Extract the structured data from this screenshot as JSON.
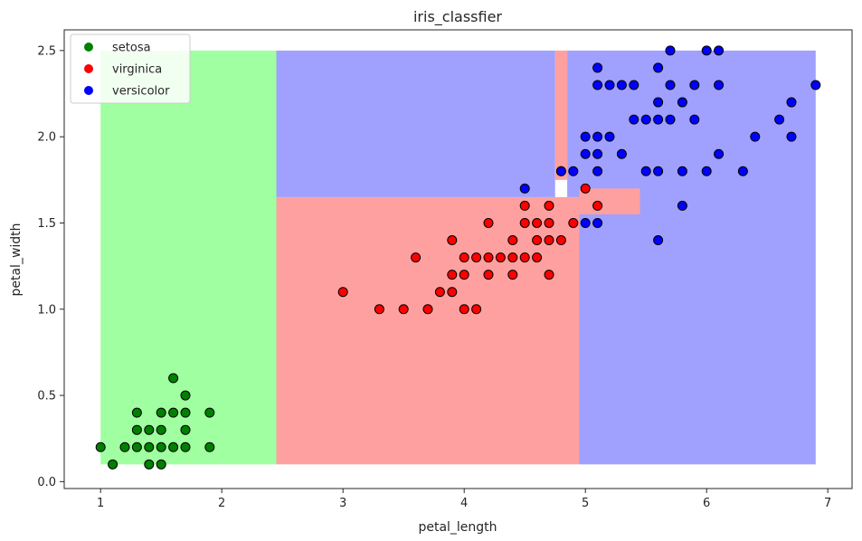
{
  "chart_data": {
    "type": "scatter",
    "title": "iris_classfier",
    "xlabel": "petal_length",
    "ylabel": "petal_width",
    "xlim": [
      0.7,
      7.2
    ],
    "ylim": [
      -0.04,
      2.62
    ],
    "xticks": [
      "1",
      "2",
      "3",
      "4",
      "5",
      "6",
      "7"
    ],
    "yticks": [
      "0.0",
      "0.5",
      "1.0",
      "1.5",
      "2.0",
      "2.5"
    ],
    "grid": false,
    "legend_position": "top-left",
    "regions": [
      {
        "label": "setosa",
        "color": "#a0ffa0",
        "x": [
          1.0,
          2.45
        ],
        "y": [
          0.1,
          2.5
        ]
      },
      {
        "label": "virginica",
        "color": "#ffa0a0",
        "x": [
          2.45,
          4.95
        ],
        "y": [
          0.1,
          1.65
        ]
      },
      {
        "label": "versicolor",
        "color": "#a0a0ff",
        "x": [
          2.45,
          4.75
        ],
        "y": [
          1.65,
          2.5
        ]
      },
      {
        "label": "virginica",
        "color": "#ffa0a0",
        "x": [
          4.75,
          4.85
        ],
        "y": [
          1.75,
          2.5
        ]
      },
      {
        "label": "versicolor",
        "color": "#a0a0ff",
        "x": [
          4.85,
          4.95
        ],
        "y": [
          1.65,
          2.5
        ]
      },
      {
        "label": "versicolor",
        "color": "#a0a0ff",
        "x": [
          4.95,
          6.9
        ],
        "y": [
          0.1,
          2.5
        ]
      },
      {
        "label": "virginica",
        "color": "#ffa0a0",
        "x": [
          4.95,
          5.45
        ],
        "y": [
          1.55,
          1.7
        ]
      }
    ],
    "series": [
      {
        "name": "setosa",
        "color": "#008000",
        "points": [
          [
            1.0,
            0.2
          ],
          [
            1.1,
            0.1
          ],
          [
            1.2,
            0.2
          ],
          [
            1.3,
            0.2
          ],
          [
            1.3,
            0.3
          ],
          [
            1.3,
            0.4
          ],
          [
            1.4,
            0.1
          ],
          [
            1.4,
            0.2
          ],
          [
            1.4,
            0.3
          ],
          [
            1.5,
            0.1
          ],
          [
            1.5,
            0.2
          ],
          [
            1.5,
            0.3
          ],
          [
            1.5,
            0.4
          ],
          [
            1.6,
            0.2
          ],
          [
            1.6,
            0.4
          ],
          [
            1.6,
            0.6
          ],
          [
            1.7,
            0.2
          ],
          [
            1.7,
            0.3
          ],
          [
            1.7,
            0.4
          ],
          [
            1.7,
            0.5
          ],
          [
            1.9,
            0.2
          ],
          [
            1.9,
            0.4
          ]
        ]
      },
      {
        "name": "virginica",
        "color": "#ff0000",
        "points": [
          [
            3.0,
            1.1
          ],
          [
            3.3,
            1.0
          ],
          [
            3.5,
            1.0
          ],
          [
            3.6,
            1.3
          ],
          [
            3.7,
            1.0
          ],
          [
            3.8,
            1.1
          ],
          [
            3.9,
            1.1
          ],
          [
            3.9,
            1.2
          ],
          [
            3.9,
            1.4
          ],
          [
            4.0,
            1.0
          ],
          [
            4.0,
            1.2
          ],
          [
            4.0,
            1.3
          ],
          [
            4.1,
            1.0
          ],
          [
            4.1,
            1.3
          ],
          [
            4.2,
            1.2
          ],
          [
            4.2,
            1.3
          ],
          [
            4.2,
            1.5
          ],
          [
            4.3,
            1.3
          ],
          [
            4.4,
            1.2
          ],
          [
            4.4,
            1.3
          ],
          [
            4.4,
            1.4
          ],
          [
            4.5,
            1.3
          ],
          [
            4.5,
            1.5
          ],
          [
            4.5,
            1.6
          ],
          [
            4.6,
            1.3
          ],
          [
            4.6,
            1.4
          ],
          [
            4.6,
            1.5
          ],
          [
            4.7,
            1.2
          ],
          [
            4.7,
            1.4
          ],
          [
            4.7,
            1.5
          ],
          [
            4.7,
            1.6
          ],
          [
            4.8,
            1.4
          ],
          [
            4.8,
            1.8
          ],
          [
            4.9,
            1.5
          ],
          [
            5.0,
            1.7
          ],
          [
            5.1,
            1.6
          ]
        ]
      },
      {
        "name": "versicolor",
        "color": "#0000ff",
        "points": [
          [
            4.5,
            1.7
          ],
          [
            4.8,
            1.8
          ],
          [
            4.9,
            1.8
          ],
          [
            5.0,
            1.5
          ],
          [
            5.0,
            1.9
          ],
          [
            5.0,
            2.0
          ],
          [
            5.1,
            1.5
          ],
          [
            5.1,
            1.8
          ],
          [
            5.1,
            1.9
          ],
          [
            5.1,
            2.0
          ],
          [
            5.1,
            2.3
          ],
          [
            5.1,
            2.4
          ],
          [
            5.2,
            2.0
          ],
          [
            5.2,
            2.3
          ],
          [
            5.3,
            1.9
          ],
          [
            5.3,
            2.3
          ],
          [
            5.4,
            2.1
          ],
          [
            5.4,
            2.3
          ],
          [
            5.5,
            1.8
          ],
          [
            5.5,
            2.1
          ],
          [
            5.6,
            1.4
          ],
          [
            5.6,
            1.8
          ],
          [
            5.6,
            2.1
          ],
          [
            5.6,
            2.2
          ],
          [
            5.6,
            2.4
          ],
          [
            5.7,
            2.1
          ],
          [
            5.7,
            2.3
          ],
          [
            5.7,
            2.5
          ],
          [
            5.8,
            1.6
          ],
          [
            5.8,
            1.8
          ],
          [
            5.8,
            2.2
          ],
          [
            5.9,
            2.1
          ],
          [
            5.9,
            2.3
          ],
          [
            6.0,
            1.8
          ],
          [
            6.0,
            2.5
          ],
          [
            6.1,
            1.9
          ],
          [
            6.1,
            2.3
          ],
          [
            6.1,
            2.5
          ],
          [
            6.3,
            1.8
          ],
          [
            6.4,
            2.0
          ],
          [
            6.6,
            2.1
          ],
          [
            6.7,
            2.0
          ],
          [
            6.7,
            2.2
          ],
          [
            6.9,
            2.3
          ]
        ]
      }
    ]
  }
}
